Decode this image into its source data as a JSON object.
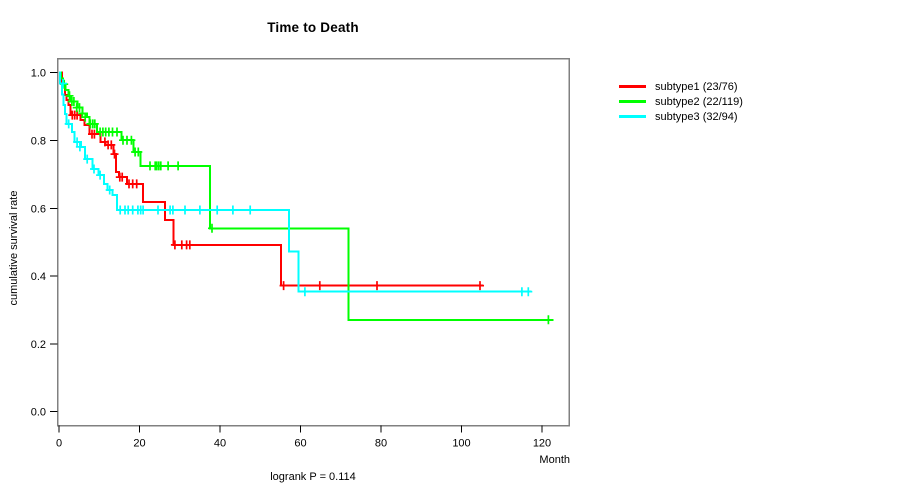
{
  "chart_data": {
    "type": "line",
    "variant": "kaplan_meier_step_curves",
    "title": "Time to Death",
    "xlabel": "Month",
    "ylabel": "cumulative survival rate",
    "annotation": "logrank P = 0.114",
    "x_ticks": [
      0,
      20,
      40,
      60,
      80,
      100,
      120
    ],
    "y_ticks": [
      0.0,
      0.2,
      0.4,
      0.6,
      0.8,
      1.0
    ],
    "xlim": [
      0,
      126
    ],
    "ylim": [
      0.0,
      1.0
    ],
    "grid": false,
    "legend_position": "right-outside-top",
    "axis_box_color": "#808080",
    "series": [
      {
        "name": "subtype1 (23/76)",
        "color": "#ff0000",
        "steps": [
          [
            0,
            1.0
          ],
          [
            0.7,
            0.974
          ],
          [
            1.1,
            0.96
          ],
          [
            1.5,
            0.934
          ],
          [
            1.9,
            0.92
          ],
          [
            2.3,
            0.905
          ],
          [
            2.8,
            0.875
          ],
          [
            5.3,
            0.86
          ],
          [
            6.3,
            0.845
          ],
          [
            7.6,
            0.819
          ],
          [
            10.3,
            0.796
          ],
          [
            11.6,
            0.787
          ],
          [
            13.5,
            0.76
          ],
          [
            14.2,
            0.707
          ],
          [
            14.9,
            0.692
          ],
          [
            16.9,
            0.672
          ],
          [
            20.9,
            0.619
          ],
          [
            26.3,
            0.566
          ],
          [
            28.4,
            0.492
          ],
          [
            55.2,
            0.372
          ]
        ],
        "end_month": 105.4,
        "censor_marks": [
          [
            3.3,
            0.875
          ],
          [
            3.9,
            0.875
          ],
          [
            4.5,
            0.875
          ],
          [
            8.2,
            0.819
          ],
          [
            8.8,
            0.819
          ],
          [
            11.4,
            0.796
          ],
          [
            12.2,
            0.787
          ],
          [
            13.0,
            0.787
          ],
          [
            13.8,
            0.76
          ],
          [
            15.1,
            0.692
          ],
          [
            15.7,
            0.692
          ],
          [
            17.4,
            0.672
          ],
          [
            18.3,
            0.672
          ],
          [
            19.3,
            0.672
          ],
          [
            28.8,
            0.492
          ],
          [
            30.5,
            0.492
          ],
          [
            31.7,
            0.492
          ],
          [
            32.5,
            0.492
          ],
          [
            55.8,
            0.372
          ],
          [
            64.8,
            0.372
          ],
          [
            79.0,
            0.372
          ],
          [
            104.6,
            0.372
          ]
        ]
      },
      {
        "name": "subtype2 (22/119)",
        "color": "#00ff00",
        "steps": [
          [
            0,
            1.0
          ],
          [
            0.5,
            0.983
          ],
          [
            1.0,
            0.966
          ],
          [
            1.6,
            0.949
          ],
          [
            2.3,
            0.932
          ],
          [
            3.0,
            0.915
          ],
          [
            4.6,
            0.897
          ],
          [
            5.9,
            0.88
          ],
          [
            7.0,
            0.869
          ],
          [
            7.6,
            0.849
          ],
          [
            9.5,
            0.825
          ],
          [
            15.5,
            0.801
          ],
          [
            18.5,
            0.766
          ],
          [
            20.2,
            0.725
          ],
          [
            37.5,
            0.541
          ],
          [
            71.9,
            0.271
          ]
        ],
        "end_month": 122.8,
        "censor_marks": [
          [
            1.3,
            0.966
          ],
          [
            2.6,
            0.932
          ],
          [
            3.2,
            0.915
          ],
          [
            3.7,
            0.915
          ],
          [
            4.4,
            0.897
          ],
          [
            5.1,
            0.897
          ],
          [
            5.8,
            0.88
          ],
          [
            6.5,
            0.869
          ],
          [
            7.8,
            0.849
          ],
          [
            8.4,
            0.849
          ],
          [
            8.9,
            0.849
          ],
          [
            10.2,
            0.825
          ],
          [
            10.9,
            0.825
          ],
          [
            11.6,
            0.825
          ],
          [
            12.4,
            0.825
          ],
          [
            13.3,
            0.825
          ],
          [
            14.4,
            0.825
          ],
          [
            15.9,
            0.801
          ],
          [
            16.9,
            0.801
          ],
          [
            18.0,
            0.801
          ],
          [
            18.9,
            0.766
          ],
          [
            19.7,
            0.766
          ],
          [
            22.6,
            0.725
          ],
          [
            23.9,
            0.725
          ],
          [
            24.3,
            0.725
          ],
          [
            24.8,
            0.725
          ],
          [
            25.3,
            0.725
          ],
          [
            27.1,
            0.725
          ],
          [
            29.6,
            0.725
          ],
          [
            38.0,
            0.541
          ],
          [
            121.6,
            0.271
          ]
        ]
      },
      {
        "name": "subtype3 (32/94)",
        "color": "#00ffff",
        "steps": [
          [
            0,
            1.0
          ],
          [
            0.3,
            0.968
          ],
          [
            0.7,
            0.936
          ],
          [
            1.1,
            0.904
          ],
          [
            1.5,
            0.878
          ],
          [
            1.9,
            0.849
          ],
          [
            3.2,
            0.825
          ],
          [
            3.9,
            0.796
          ],
          [
            5.5,
            0.781
          ],
          [
            6.5,
            0.745
          ],
          [
            8.3,
            0.716
          ],
          [
            9.8,
            0.698
          ],
          [
            11.2,
            0.672
          ],
          [
            12.1,
            0.654
          ],
          [
            13.3,
            0.639
          ],
          [
            14.4,
            0.595
          ],
          [
            57.2,
            0.472
          ],
          [
            59.5,
            0.354
          ]
        ],
        "end_month": 117.4,
        "censor_marks": [
          [
            1.0,
            0.968
          ],
          [
            2.4,
            0.849
          ],
          [
            4.5,
            0.796
          ],
          [
            5.2,
            0.781
          ],
          [
            7.0,
            0.745
          ],
          [
            8.7,
            0.716
          ],
          [
            10.2,
            0.698
          ],
          [
            12.6,
            0.654
          ],
          [
            15.2,
            0.595
          ],
          [
            16.4,
            0.595
          ],
          [
            17.2,
            0.595
          ],
          [
            18.3,
            0.595
          ],
          [
            19.6,
            0.595
          ],
          [
            20.3,
            0.595
          ],
          [
            20.9,
            0.595
          ],
          [
            24.6,
            0.595
          ],
          [
            27.6,
            0.595
          ],
          [
            28.3,
            0.595
          ],
          [
            31.3,
            0.595
          ],
          [
            35.0,
            0.595
          ],
          [
            39.3,
            0.595
          ],
          [
            43.2,
            0.595
          ],
          [
            47.5,
            0.595
          ],
          [
            61.1,
            0.354
          ],
          [
            115.0,
            0.354
          ],
          [
            116.6,
            0.354
          ]
        ]
      }
    ]
  }
}
